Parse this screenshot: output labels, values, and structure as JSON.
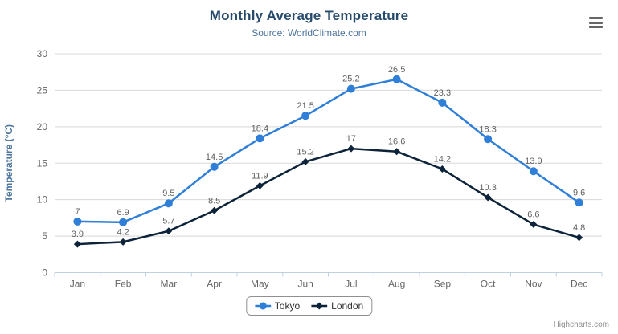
{
  "chart": {
    "title": "Monthly Average Temperature",
    "subtitle": "Source: WorldClimate.com",
    "credits_label": "Highcharts.com",
    "icons": {
      "menu": "hamburger-menu-icon"
    }
  },
  "chart_data": {
    "type": "line",
    "title": "Monthly Average Temperature",
    "subtitle": "Source: WorldClimate.com",
    "categories": [
      "Jan",
      "Feb",
      "Mar",
      "Apr",
      "May",
      "Jun",
      "Jul",
      "Aug",
      "Sep",
      "Oct",
      "Nov",
      "Dec"
    ],
    "series": [
      {
        "name": "Tokyo",
        "color": "#2f7ed8",
        "marker": "circle",
        "values": [
          7,
          6.9,
          9.5,
          14.5,
          18.4,
          21.5,
          25.2,
          26.5,
          23.3,
          18.3,
          13.9,
          9.6
        ]
      },
      {
        "name": "London",
        "color": "#0d233a",
        "marker": "diamond",
        "values": [
          3.9,
          4.2,
          5.7,
          8.5,
          11.9,
          15.2,
          17,
          16.6,
          14.2,
          10.3,
          6.6,
          4.8
        ]
      }
    ],
    "xlabel": "",
    "ylabel": "Temperature (°C)",
    "ylim": [
      0,
      30
    ],
    "ytick_step": 5,
    "grid": true,
    "data_labels": true,
    "legend_position": "bottom",
    "colors": {
      "grid_line": "#d8d8d8",
      "axis_line": "#c0d0e0",
      "tick": "#c0d0e0",
      "axis_label": "#666666",
      "axis_title": "#4d759e",
      "data_label": "#606060",
      "title": "#274b6d",
      "subtitle": "#4d759e",
      "legend_border": "#909090",
      "legend_text": "#333333",
      "credits": "#909090",
      "menu_icon": "#666666"
    }
  }
}
